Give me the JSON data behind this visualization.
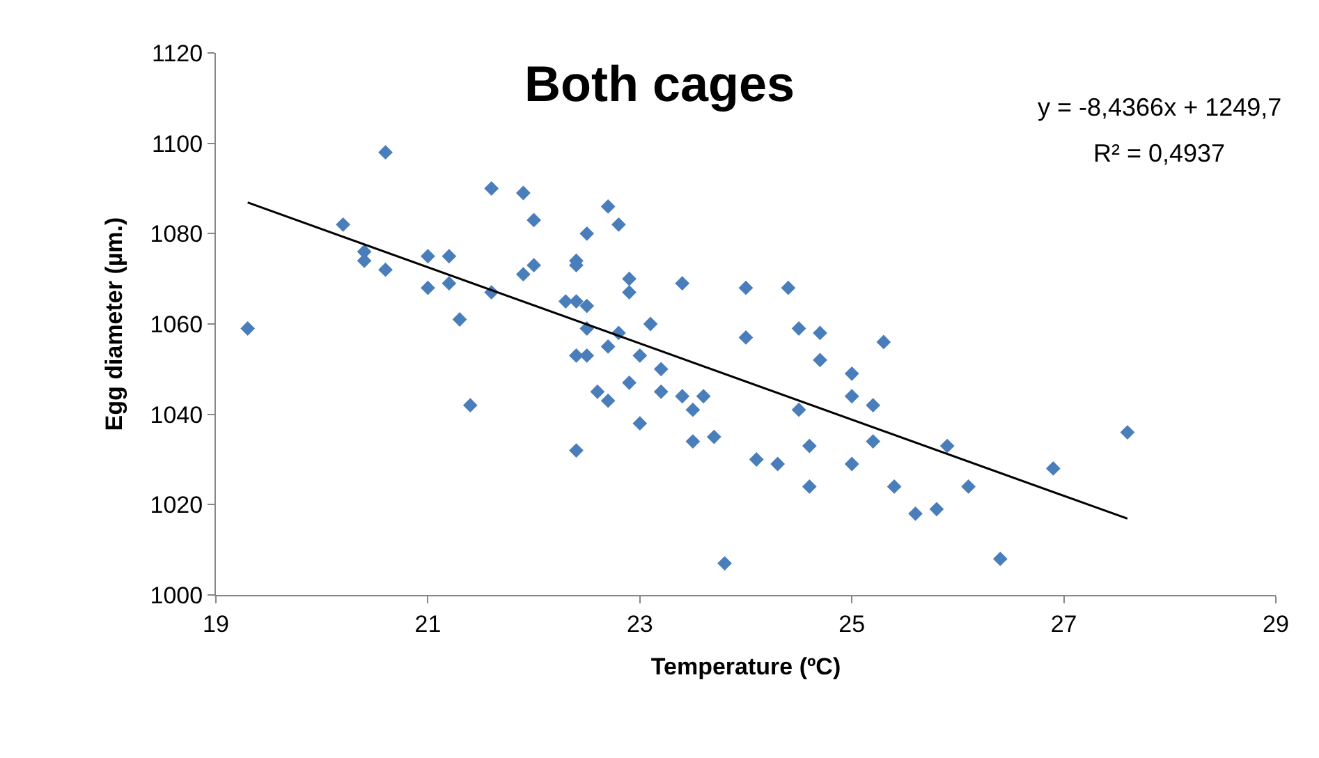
{
  "chart_data": {
    "type": "scatter",
    "title": "Both cages",
    "xlabel": "Temperature (ºC)",
    "ylabel": "Egg diameter (µm.)",
    "xlim": [
      19,
      29
    ],
    "xticks": [
      19,
      21,
      23,
      25,
      27,
      29
    ],
    "ylim": [
      1000,
      1120
    ],
    "yticks": [
      1000,
      1020,
      1040,
      1060,
      1080,
      1100,
      1120
    ],
    "annotations": [
      "y = -8,4366x + 1249,7",
      "R² = 0,4937"
    ],
    "series": [
      {
        "color": "#4a7ebb",
        "marker": "diamond",
        "x": [
          19.3,
          20.2,
          20.4,
          20.4,
          20.6,
          20.6,
          21.0,
          21.0,
          21.2,
          21.2,
          21.3,
          21.4,
          21.6,
          21.6,
          21.9,
          21.9,
          22.0,
          22.0,
          22.3,
          22.4,
          22.4,
          22.4,
          22.4,
          22.4,
          22.5,
          22.5,
          22.5,
          22.5,
          22.6,
          22.7,
          22.7,
          22.7,
          22.8,
          22.8,
          22.9,
          22.9,
          22.9,
          23.0,
          23.0,
          23.1,
          23.2,
          23.2,
          23.4,
          23.4,
          23.5,
          23.5,
          23.6,
          23.7,
          23.8,
          24.0,
          24.0,
          24.1,
          24.3,
          24.4,
          24.5,
          24.5,
          24.6,
          24.6,
          24.7,
          24.7,
          25.0,
          25.0,
          25.0,
          25.2,
          25.2,
          25.3,
          25.4,
          25.6,
          25.8,
          25.9,
          26.1,
          26.4,
          26.9,
          27.6
        ],
        "values": [
          1059,
          1082,
          1076,
          1074,
          1072,
          1098,
          1075,
          1068,
          1075,
          1069,
          1061,
          1042,
          1090,
          1067,
          1089,
          1071,
          1083,
          1073,
          1065,
          1074,
          1073,
          1065,
          1053,
          1032,
          1080,
          1064,
          1059,
          1053,
          1045,
          1086,
          1055,
          1043,
          1082,
          1058,
          1070,
          1067,
          1047,
          1053,
          1038,
          1060,
          1050,
          1045,
          1069,
          1044,
          1041,
          1034,
          1044,
          1035,
          1007,
          1068,
          1057,
          1030,
          1029,
          1068,
          1059,
          1041,
          1033,
          1024,
          1058,
          1052,
          1049,
          1044,
          1029,
          1042,
          1034,
          1056,
          1024,
          1018,
          1019,
          1033,
          1024,
          1008,
          1028,
          1036
        ]
      },
      {
        "type": "line",
        "color": "#000000",
        "line_style": "solid",
        "marker": "none",
        "x": [
          19.3,
          27.6
        ],
        "values": [
          1086.9,
          1016.9
        ]
      }
    ]
  }
}
